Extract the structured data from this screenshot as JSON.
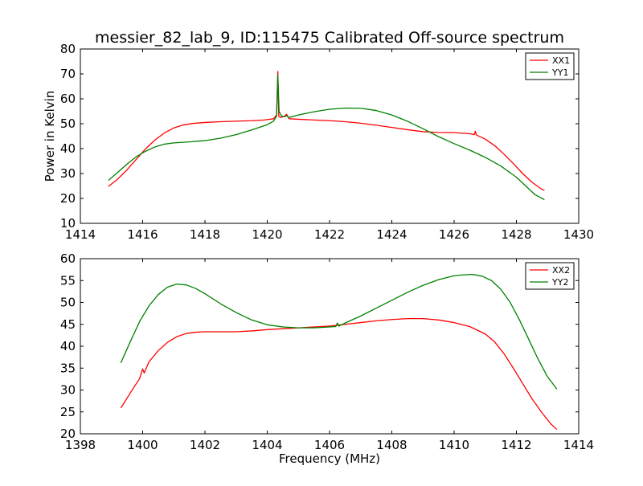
{
  "figure": {
    "title": "messier_82_lab_9, ID:115475 Calibrated Off-source spectrum"
  },
  "chart_data": [
    {
      "type": "line",
      "title": "messier_82_lab_9, ID:115475 Calibrated Off-source spectrum",
      "xlabel": "",
      "ylabel": "Power in Kelvin",
      "xlim": [
        1414,
        1430
      ],
      "ylim": [
        10,
        80
      ],
      "xticks": [
        1414,
        1416,
        1418,
        1420,
        1422,
        1424,
        1426,
        1428,
        1430
      ],
      "yticks": [
        10,
        20,
        30,
        40,
        50,
        60,
        70,
        80
      ],
      "grid": false,
      "legend_position": "top-right",
      "series": [
        {
          "name": "XX1",
          "color": "#ff0000",
          "x": [
            1414.9,
            1415.2,
            1415.5,
            1415.8,
            1416.1,
            1416.4,
            1416.7,
            1417.0,
            1417.3,
            1417.6,
            1418.0,
            1418.5,
            1419.0,
            1419.5,
            1419.9,
            1420.2,
            1420.3,
            1420.34,
            1420.37,
            1420.42,
            1420.55,
            1420.62,
            1420.7,
            1421.0,
            1421.5,
            1422.0,
            1422.5,
            1423.0,
            1423.5,
            1424.0,
            1424.5,
            1425.0,
            1425.5,
            1426.0,
            1426.5,
            1426.65,
            1426.68,
            1426.71,
            1427.0,
            1427.3,
            1427.6,
            1427.9,
            1428.2,
            1428.5,
            1428.8,
            1428.9
          ],
          "y": [
            24.8,
            27.8,
            31.5,
            35.8,
            40.0,
            43.5,
            46.3,
            48.3,
            49.5,
            50.1,
            50.5,
            50.8,
            51.0,
            51.2,
            51.5,
            52.0,
            53.5,
            71.0,
            53.0,
            52.5,
            53.0,
            53.8,
            52.0,
            51.8,
            51.5,
            51.2,
            50.8,
            50.2,
            49.4,
            48.5,
            47.6,
            46.8,
            46.5,
            46.4,
            46.0,
            45.6,
            47.0,
            45.5,
            43.8,
            41.2,
            37.8,
            34.0,
            30.0,
            26.5,
            23.8,
            23.2
          ]
        },
        {
          "name": "YY1",
          "color": "#008000",
          "x": [
            1414.9,
            1415.2,
            1415.5,
            1415.8,
            1416.1,
            1416.4,
            1416.7,
            1417.0,
            1417.5,
            1418.0,
            1418.5,
            1419.0,
            1419.5,
            1420.0,
            1420.2,
            1420.3,
            1420.34,
            1420.38,
            1420.45,
            1420.55,
            1420.62,
            1420.7,
            1421.0,
            1421.5,
            1422.0,
            1422.5,
            1423.0,
            1423.5,
            1424.0,
            1424.5,
            1425.0,
            1425.5,
            1426.0,
            1426.5,
            1427.0,
            1427.5,
            1428.0,
            1428.3,
            1428.6,
            1428.9
          ],
          "y": [
            27.2,
            30.5,
            33.8,
            36.8,
            39.0,
            40.7,
            41.8,
            42.3,
            42.7,
            43.2,
            44.2,
            45.6,
            47.5,
            49.6,
            51.0,
            53.0,
            69.5,
            55.0,
            53.2,
            52.8,
            53.2,
            52.5,
            53.5,
            54.8,
            55.8,
            56.3,
            56.2,
            55.3,
            53.5,
            51.0,
            48.0,
            44.8,
            42.0,
            39.4,
            36.5,
            33.0,
            28.5,
            25.0,
            21.5,
            19.5
          ]
        }
      ]
    },
    {
      "type": "line",
      "title": "",
      "xlabel": "Frequency (MHz)",
      "ylabel": "",
      "xlim": [
        1398,
        1414
      ],
      "ylim": [
        20,
        60
      ],
      "xticks": [
        1398,
        1400,
        1402,
        1404,
        1406,
        1408,
        1410,
        1412,
        1414
      ],
      "yticks": [
        20,
        25,
        30,
        35,
        40,
        45,
        50,
        55,
        60
      ],
      "grid": false,
      "legend_position": "top-right",
      "series": [
        {
          "name": "XX2",
          "color": "#ff0000",
          "x": [
            1399.3,
            1399.6,
            1399.9,
            1400.0,
            1400.05,
            1400.2,
            1400.5,
            1400.8,
            1401.1,
            1401.4,
            1401.7,
            1402.0,
            1402.5,
            1403.0,
            1403.5,
            1404.0,
            1404.5,
            1405.0,
            1405.5,
            1406.0,
            1406.5,
            1407.0,
            1407.5,
            1408.0,
            1408.5,
            1409.0,
            1409.5,
            1410.0,
            1410.5,
            1411.0,
            1411.3,
            1411.6,
            1411.9,
            1412.2,
            1412.5,
            1412.8,
            1413.1,
            1413.3
          ],
          "y": [
            25.9,
            29.3,
            32.6,
            34.8,
            33.9,
            36.4,
            39.0,
            40.9,
            42.2,
            42.9,
            43.2,
            43.3,
            43.3,
            43.3,
            43.5,
            43.8,
            44.0,
            44.2,
            44.4,
            44.6,
            45.0,
            45.4,
            45.8,
            46.1,
            46.3,
            46.3,
            46.0,
            45.4,
            44.5,
            42.8,
            41.0,
            38.3,
            35.0,
            31.5,
            28.0,
            25.0,
            22.3,
            21.0
          ]
        },
        {
          "name": "YY2",
          "color": "#008000",
          "x": [
            1399.3,
            1399.6,
            1399.9,
            1400.2,
            1400.5,
            1400.8,
            1401.1,
            1401.4,
            1401.7,
            1402.0,
            1402.5,
            1403.0,
            1403.5,
            1404.0,
            1404.5,
            1405.0,
            1405.5,
            1406.0,
            1406.2,
            1406.25,
            1406.3,
            1406.5,
            1407.0,
            1407.5,
            1408.0,
            1408.5,
            1409.0,
            1409.5,
            1410.0,
            1410.3,
            1410.6,
            1410.9,
            1411.2,
            1411.5,
            1411.8,
            1412.1,
            1412.4,
            1412.7,
            1413.0,
            1413.3
          ],
          "y": [
            36.2,
            41.0,
            45.6,
            49.2,
            51.8,
            53.5,
            54.2,
            54.0,
            53.2,
            52.0,
            49.7,
            47.7,
            46.0,
            44.9,
            44.4,
            44.2,
            44.2,
            44.4,
            44.5,
            45.3,
            44.6,
            45.3,
            46.9,
            48.7,
            50.5,
            52.3,
            53.9,
            55.2,
            56.1,
            56.3,
            56.4,
            56.0,
            55.0,
            53.0,
            50.0,
            46.0,
            41.5,
            37.0,
            33.0,
            30.2
          ]
        }
      ]
    }
  ]
}
